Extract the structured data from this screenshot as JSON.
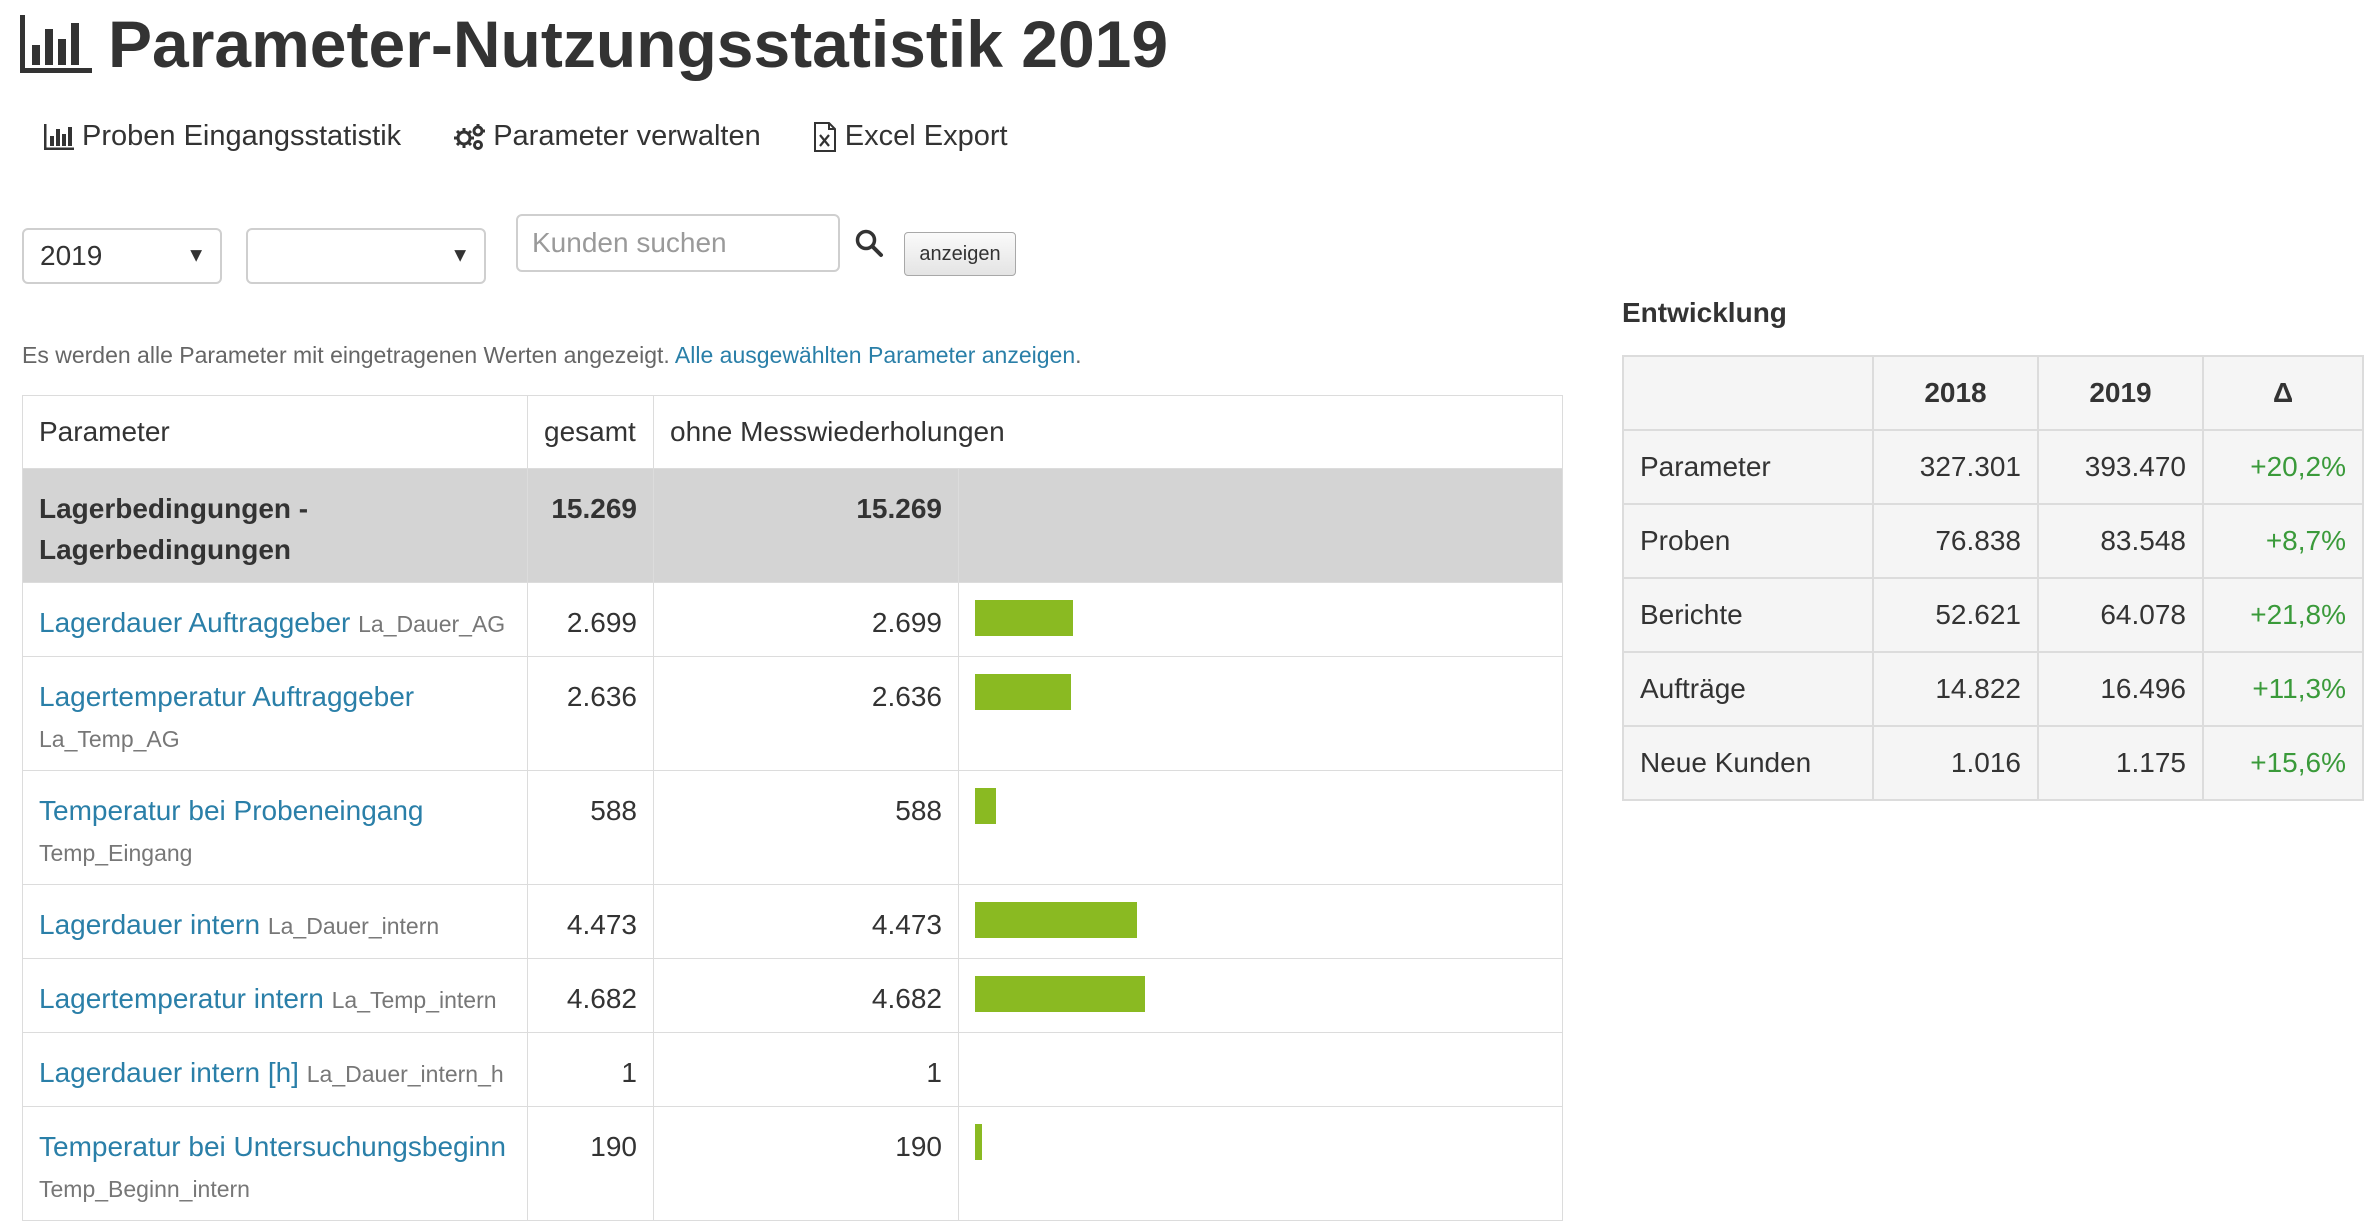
{
  "page": {
    "title": "Parameter-Nutzungsstatistik 2019",
    "title_icon": "bar-chart-icon"
  },
  "toolbar": {
    "items": [
      {
        "label": "Proben Eingangsstatistik",
        "icon": "bar-chart-icon"
      },
      {
        "label": "Parameter verwalten",
        "icon": "gears-icon"
      },
      {
        "label": "Excel Export",
        "icon": "excel-file-icon"
      }
    ]
  },
  "filters": {
    "year_select": {
      "value": "2019"
    },
    "second_select": {
      "value": ""
    },
    "search": {
      "placeholder": "Kunden suchen",
      "value": "",
      "icon": "search-icon"
    },
    "show_button": "anzeigen"
  },
  "info": {
    "text": "Es werden alle Parameter mit eingetragenen Werten angezeigt.",
    "link": "Alle ausgewählten Parameter anzeigen",
    "suffix": "."
  },
  "param_table": {
    "columns": [
      "Parameter",
      "gesamt",
      "ohne Messwiederholungen"
    ],
    "bar_color": "#8aba22",
    "group": {
      "name": "Lagerbedingungen - Lagerbedingungen",
      "total": "15.269",
      "without_repeats": "15.269"
    },
    "rows": [
      {
        "name": "Lagerdauer Auftraggeber",
        "code": "La_Dauer_AG",
        "total": "2.699",
        "without_repeats": "2.699",
        "share": 0.5764
      },
      {
        "name": "Lagertemperatur Auftraggeber",
        "code": "La_Temp_AG",
        "total": "2.636",
        "without_repeats": "2.636",
        "share": 0.563
      },
      {
        "name": "Temperatur bei Probeneingang",
        "code": "Temp_Eingang",
        "total": "588",
        "without_repeats": "588",
        "share": 0.1256
      },
      {
        "name": "Lagerdauer intern",
        "code": "La_Dauer_intern",
        "total": "4.473",
        "without_repeats": "4.473",
        "share": 0.9554
      },
      {
        "name": "Lagertemperatur intern",
        "code": "La_Temp_intern",
        "total": "4.682",
        "without_repeats": "4.682",
        "share": 1.0
      },
      {
        "name": "Lagerdauer intern [h]",
        "code": "La_Dauer_intern_h",
        "total": "1",
        "without_repeats": "1",
        "share": 0.0002
      },
      {
        "name": "Temperatur bei Untersuchungsbeginn",
        "code": "Temp_Beginn_intern",
        "total": "190",
        "without_repeats": "190",
        "share": 0.0406
      }
    ]
  },
  "development": {
    "title": "Entwicklung",
    "columns": [
      "",
      "2018",
      "2019",
      "Δ"
    ],
    "delta_color": "#3a9a3a",
    "rows": [
      {
        "label": "Parameter",
        "y2018": "327.301",
        "y2019": "393.470",
        "delta": "+20,2%"
      },
      {
        "label": "Proben",
        "y2018": "76.838",
        "y2019": "83.548",
        "delta": "+8,7%"
      },
      {
        "label": "Berichte",
        "y2018": "52.621",
        "y2019": "64.078",
        "delta": "+21,8%"
      },
      {
        "label": "Aufträge",
        "y2018": "14.822",
        "y2019": "16.496",
        "delta": "+11,3%"
      },
      {
        "label": "Neue Kunden",
        "y2018": "1.016",
        "y2019": "1.175",
        "delta": "+15,6%"
      }
    ]
  }
}
